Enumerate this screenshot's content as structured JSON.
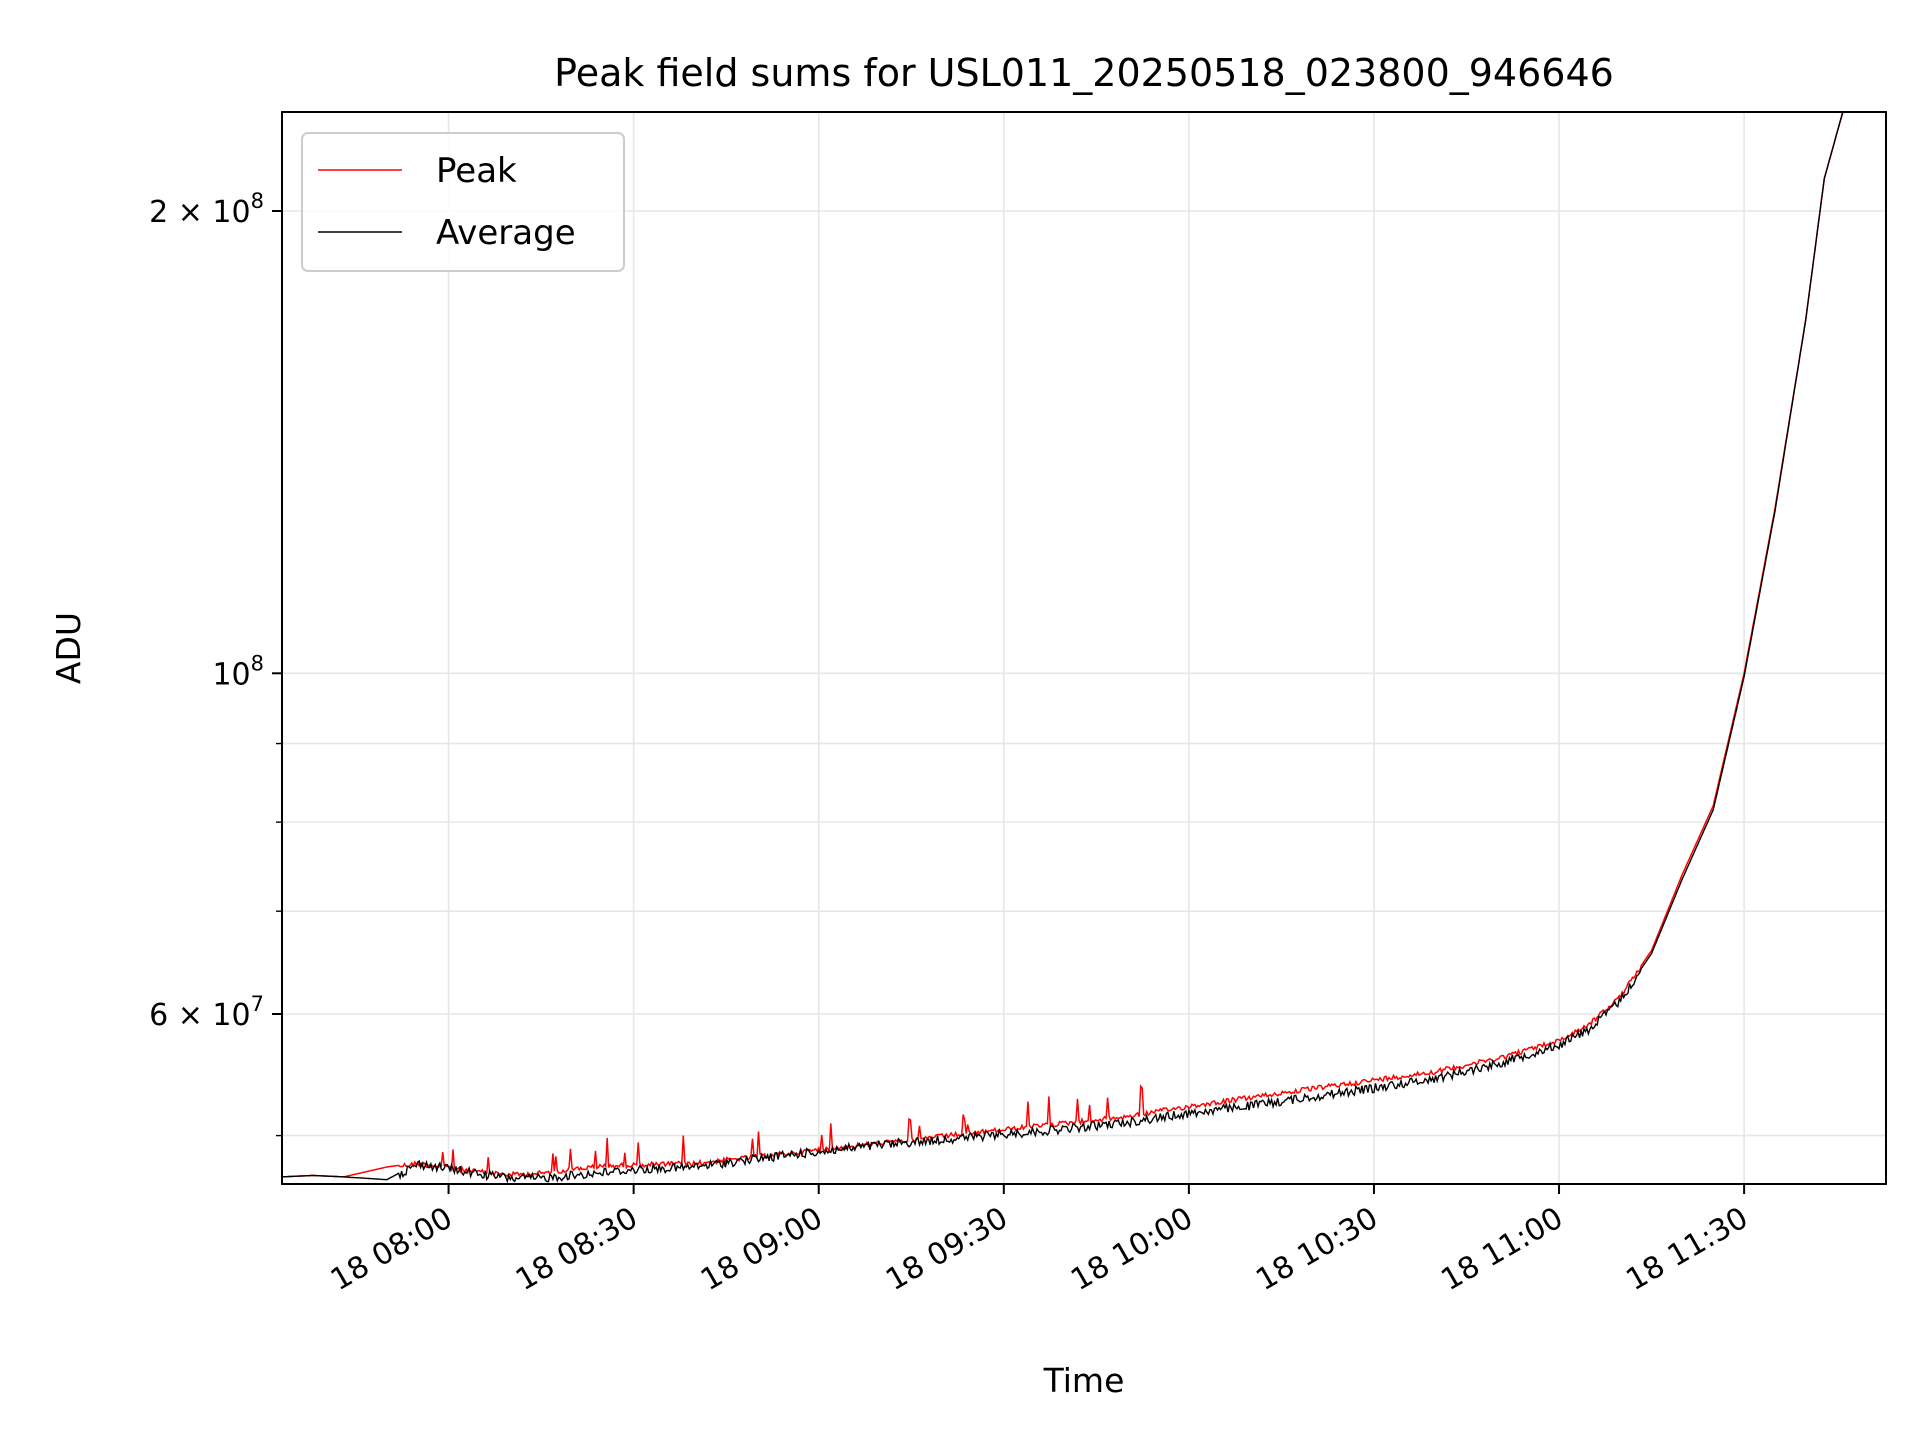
{
  "chart_data": {
    "type": "line",
    "title": "Peak field sums for USL011_20250518_023800_946646",
    "xlabel": "Time",
    "ylabel": "ADU",
    "yscale": "log",
    "xlim": [
      "2025-05-18 07:33",
      "2025-05-18 11:53"
    ],
    "ylim": [
      46500000,
      232000000
    ],
    "x_ticks": [
      {
        "value": "2025-05-18 08:00",
        "label": "18 08:00"
      },
      {
        "value": "2025-05-18 08:30",
        "label": "18 08:30"
      },
      {
        "value": "2025-05-18 09:00",
        "label": "18 09:00"
      },
      {
        "value": "2025-05-18 09:30",
        "label": "18 09:30"
      },
      {
        "value": "2025-05-18 10:00",
        "label": "18 10:00"
      },
      {
        "value": "2025-05-18 10:30",
        "label": "18 10:30"
      },
      {
        "value": "2025-05-18 11:00",
        "label": "18 11:00"
      },
      {
        "value": "2025-05-18 11:30",
        "label": "18 11:30"
      }
    ],
    "y_ticks": [
      {
        "value": 200000000,
        "base": "2 × 10",
        "exp": "8"
      },
      {
        "value": 100000000,
        "base": "10",
        "exp": "8"
      },
      {
        "value": 60000000,
        "base": "6 × 10",
        "exp": "7"
      }
    ],
    "y_minor_ticks": [
      50000000,
      70000000,
      80000000,
      90000000
    ],
    "grid": true,
    "legend_position": "top-left",
    "series": [
      {
        "name": "Peak",
        "color": "#ff0000",
        "x": [
          "2025-05-18 07:33",
          "2025-05-18 07:38",
          "2025-05-18 07:43",
          "2025-05-18 07:50",
          "2025-05-18 07:55",
          "2025-05-18 08:00",
          "2025-05-18 08:05",
          "2025-05-18 08:10",
          "2025-05-18 08:15",
          "2025-05-18 08:20",
          "2025-05-18 08:25",
          "2025-05-18 08:30",
          "2025-05-18 08:40",
          "2025-05-18 08:50",
          "2025-05-18 09:00",
          "2025-05-18 09:10",
          "2025-05-18 09:20",
          "2025-05-18 09:30",
          "2025-05-18 09:40",
          "2025-05-18 09:50",
          "2025-05-18 10:00",
          "2025-05-18 10:10",
          "2025-05-18 10:20",
          "2025-05-18 10:30",
          "2025-05-18 10:40",
          "2025-05-18 10:50",
          "2025-05-18 11:00",
          "2025-05-18 11:05",
          "2025-05-18 11:10",
          "2025-05-18 11:15",
          "2025-05-18 11:20",
          "2025-05-18 11:25",
          "2025-05-18 11:30",
          "2025-05-18 11:35",
          "2025-05-18 11:40",
          "2025-05-18 11:43",
          "2025-05-18 11:46"
        ],
        "values": [
          47000000,
          47100000,
          47000000,
          47700000,
          48000000,
          47700000,
          47400000,
          47200000,
          47300000,
          47600000,
          47800000,
          47900000,
          48000000,
          48500000,
          49000000,
          49500000,
          50000000,
          50500000,
          51000000,
          51500000,
          52300000,
          53000000,
          53700000,
          54400000,
          55100000,
          56200000,
          57700000,
          59200000,
          61700000,
          66000000,
          74000000,
          82000000,
          100000000,
          128000000,
          170000000,
          210000000,
          232000000
        ]
      },
      {
        "name": "Average",
        "color": "#000000",
        "x": [
          "2025-05-18 07:33",
          "2025-05-18 07:38",
          "2025-05-18 07:43",
          "2025-05-18 07:50",
          "2025-05-18 07:55",
          "2025-05-18 08:00",
          "2025-05-18 08:05",
          "2025-05-18 08:10",
          "2025-05-18 08:15",
          "2025-05-18 08:20",
          "2025-05-18 08:25",
          "2025-05-18 08:30",
          "2025-05-18 08:40",
          "2025-05-18 08:50",
          "2025-05-18 09:00",
          "2025-05-18 09:10",
          "2025-05-18 09:20",
          "2025-05-18 09:30",
          "2025-05-18 09:40",
          "2025-05-18 09:50",
          "2025-05-18 10:00",
          "2025-05-18 10:10",
          "2025-05-18 10:20",
          "2025-05-18 10:30",
          "2025-05-18 10:40",
          "2025-05-18 10:50",
          "2025-05-18 11:00",
          "2025-05-18 11:05",
          "2025-05-18 11:10",
          "2025-05-18 11:15",
          "2025-05-18 11:20",
          "2025-05-18 11:25",
          "2025-05-18 11:30",
          "2025-05-18 11:35",
          "2025-05-18 11:40",
          "2025-05-18 11:43",
          "2025-05-18 11:46"
        ],
        "values": [
          47000000,
          47100000,
          47000000,
          46800000,
          48000000,
          47700000,
          47300000,
          47000000,
          47000000,
          47200000,
          47400000,
          47600000,
          47800000,
          48400000,
          48900000,
          49400000,
          49800000,
          50200000,
          50600000,
          51100000,
          51800000,
          52400000,
          53100000,
          53800000,
          54600000,
          55800000,
          57400000,
          58800000,
          61400000,
          65700000,
          73500000,
          81500000,
          99500000,
          127500000,
          170000000,
          210000000,
          232000000
        ]
      }
    ]
  }
}
